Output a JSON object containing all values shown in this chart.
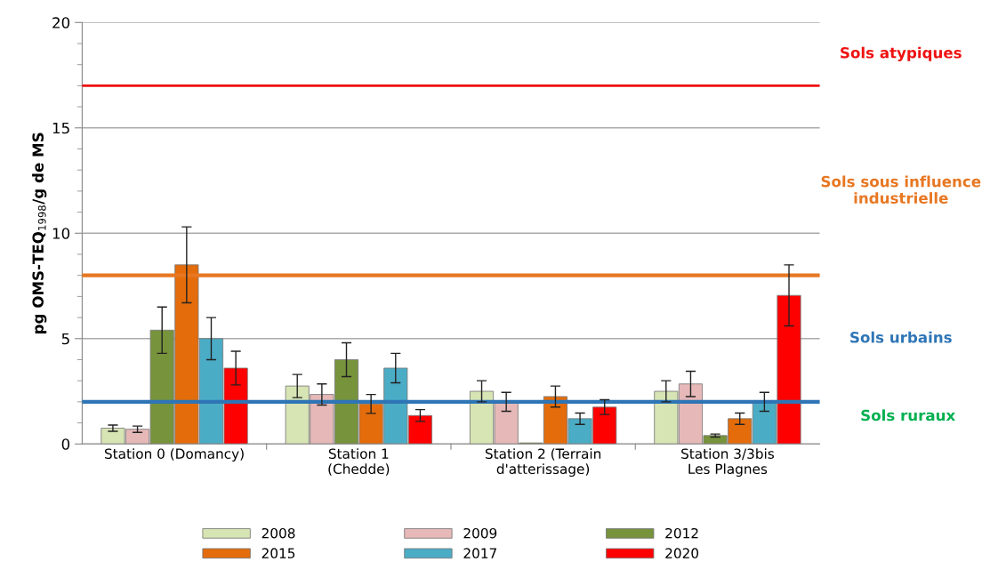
{
  "chart_data": {
    "type": "bar",
    "ylabel": "pg OMS-TEQ$_{1998}$/g de MS",
    "categories": [
      "Station 0 (Domancy)",
      "Station 1\n(Chedde)",
      "Station 2 (Terrain\nd'atterissage)",
      "Station 3/3bis\nLes Plagnes"
    ],
    "series": [
      {
        "name": "2008",
        "color": "#d7e4b4",
        "values": [
          0.75,
          2.75,
          2.5,
          2.5
        ],
        "errors": [
          0.15,
          0.55,
          0.5,
          0.5
        ]
      },
      {
        "name": "2009",
        "color": "#e6b9b8",
        "values": [
          0.7,
          2.35,
          2.0,
          2.85
        ],
        "errors": [
          0.15,
          0.5,
          0.45,
          0.6
        ]
      },
      {
        "name": "2012",
        "color": "#77933c",
        "values": [
          5.4,
          4.0,
          0.05,
          0.4
        ],
        "errors": [
          1.1,
          0.8,
          null,
          0.07
        ]
      },
      {
        "name": "2015",
        "color": "#e46c0a",
        "values": [
          8.5,
          1.9,
          2.25,
          1.2
        ],
        "errors": [
          1.8,
          0.45,
          0.5,
          0.27
        ]
      },
      {
        "name": "2017",
        "color": "#4bacc6",
        "values": [
          5.0,
          3.6,
          1.2,
          2.0
        ],
        "errors": [
          1.0,
          0.7,
          0.27,
          0.45
        ]
      },
      {
        "name": "2020",
        "color": "#ff0000",
        "values": [
          3.6,
          1.35,
          1.75,
          7.05
        ],
        "errors": [
          0.8,
          0.28,
          0.35,
          1.45
        ]
      }
    ],
    "ylim": [
      0,
      20
    ],
    "yticks": [
      0,
      5,
      10,
      15,
      20
    ],
    "grid": "y",
    "legend": "bottom",
    "ref_lines": [
      {
        "axis": "y",
        "value": 17,
        "label": "Sols atypiques",
        "color": "#ee1111"
      },
      {
        "axis": "y",
        "value": 8,
        "label": "Sols sous influence\nindustrielle",
        "color": "#e87722"
      },
      {
        "axis": "y",
        "value": 2,
        "label": "Sols urbains",
        "color": "#2e75b6"
      }
    ],
    "annotations": [
      "Sols ruraux"
    ]
  }
}
